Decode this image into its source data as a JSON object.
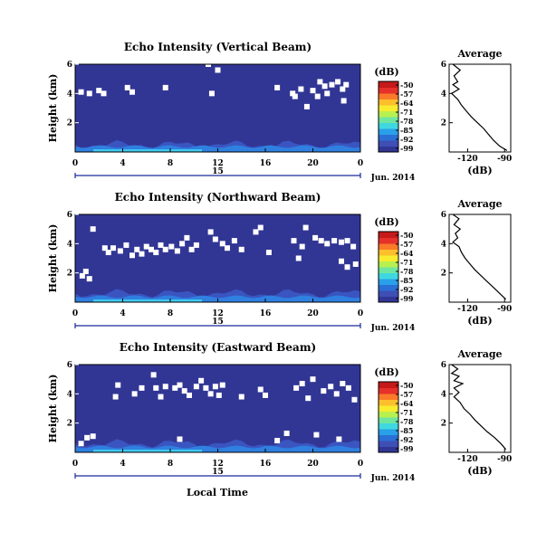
{
  "figure": {
    "xlabel": "Local Time",
    "date_label": "Jun. 2014",
    "day_label": "15"
  },
  "colorbar": {
    "unit": "(dB)",
    "ticks": [
      "-50",
      "-57",
      "-64",
      "-71",
      "-78",
      "-85",
      "-92",
      "-99"
    ],
    "colors": [
      "#313695",
      "#3f4fb4",
      "#2a6fd6",
      "#2aa0e8",
      "#3fd8e0",
      "#6fe6a0",
      "#b8f050",
      "#f8ec2e",
      "#fdbf2c",
      "#fa7a2a",
      "#e6302a",
      "#c41a1a"
    ]
  },
  "avg_panel": {
    "title": "Average",
    "xlabel": "(dB)",
    "xticks": [
      "-120",
      "-90"
    ],
    "yticks": [
      "6",
      "4",
      "2"
    ]
  },
  "chart_data": [
    {
      "type": "heatmap",
      "title": "Echo Intensity (Vertical Beam)",
      "ylabel": "Height (km)",
      "xlabel": "Local Time",
      "x_ticks": [
        "0",
        "4",
        "8",
        "12",
        "16",
        "20",
        "0"
      ],
      "y_ticks": [
        "6",
        "4",
        "2"
      ],
      "xlim": [
        0,
        24
      ],
      "ylim": [
        0,
        6
      ],
      "clim": [
        -99,
        -50
      ],
      "background_value": -99,
      "gap_points": [
        [
          2.0,
          4.2
        ],
        [
          2.4,
          4.0
        ],
        [
          1.2,
          4.0
        ],
        [
          0.5,
          4.1
        ],
        [
          4.4,
          4.4
        ],
        [
          4.8,
          4.1
        ],
        [
          7.6,
          4.4
        ],
        [
          11.5,
          4.0
        ],
        [
          11.2,
          6.0
        ],
        [
          12.0,
          5.6
        ],
        [
          17.0,
          4.4
        ],
        [
          18.3,
          4.0
        ],
        [
          18.5,
          3.8
        ],
        [
          19.0,
          4.3
        ],
        [
          19.5,
          3.1
        ],
        [
          20.0,
          4.2
        ],
        [
          20.4,
          3.8
        ],
        [
          20.6,
          4.8
        ],
        [
          21.0,
          4.5
        ],
        [
          21.2,
          4.0
        ],
        [
          21.6,
          4.6
        ],
        [
          22.1,
          4.8
        ],
        [
          22.5,
          4.3
        ],
        [
          22.6,
          3.5
        ],
        [
          22.8,
          4.6
        ]
      ],
      "surface_band_top_km": 0.5,
      "avg_profile": [
        [
          -132,
          6.0
        ],
        [
          -126,
          5.6
        ],
        [
          -131,
          5.2
        ],
        [
          -128,
          4.8
        ],
        [
          -132,
          4.6
        ],
        [
          -127,
          4.3
        ],
        [
          -133,
          4.0
        ],
        [
          -128,
          3.6
        ],
        [
          -125,
          3.2
        ],
        [
          -121,
          2.8
        ],
        [
          -117,
          2.4
        ],
        [
          -112,
          2.0
        ],
        [
          -107,
          1.6
        ],
        [
          -103,
          1.2
        ],
        [
          -99,
          0.8
        ],
        [
          -94,
          0.4
        ],
        [
          -88,
          0.1
        ]
      ]
    },
    {
      "type": "heatmap",
      "title": "Echo Intensity (Northward Beam)",
      "ylabel": "Height (km)",
      "xlabel": "Local Time",
      "x_ticks": [
        "0",
        "4",
        "8",
        "12",
        "16",
        "20",
        "0"
      ],
      "y_ticks": [
        "6",
        "4",
        "2"
      ],
      "xlim": [
        0,
        24
      ],
      "ylim": [
        0,
        6
      ],
      "clim": [
        -99,
        -50
      ],
      "background_value": -99,
      "gap_points": [
        [
          1.5,
          5.0
        ],
        [
          2.5,
          3.7
        ],
        [
          2.8,
          3.4
        ],
        [
          3.2,
          3.7
        ],
        [
          3.8,
          3.5
        ],
        [
          4.3,
          3.9
        ],
        [
          4.8,
          3.2
        ],
        [
          5.2,
          3.6
        ],
        [
          5.6,
          3.3
        ],
        [
          6.0,
          3.8
        ],
        [
          6.4,
          3.6
        ],
        [
          6.8,
          3.4
        ],
        [
          7.2,
          3.9
        ],
        [
          7.6,
          3.6
        ],
        [
          8.1,
          3.8
        ],
        [
          8.6,
          3.5
        ],
        [
          9.0,
          4.0
        ],
        [
          9.4,
          4.4
        ],
        [
          9.8,
          3.6
        ],
        [
          10.2,
          3.9
        ],
        [
          11.4,
          4.8
        ],
        [
          11.8,
          4.3
        ],
        [
          12.4,
          4.0
        ],
        [
          12.8,
          3.7
        ],
        [
          13.4,
          4.2
        ],
        [
          14.0,
          3.6
        ],
        [
          15.2,
          4.8
        ],
        [
          15.6,
          5.1
        ],
        [
          16.3,
          3.4
        ],
        [
          18.4,
          4.2
        ],
        [
          18.8,
          3.0
        ],
        [
          19.1,
          3.8
        ],
        [
          19.4,
          5.1
        ],
        [
          20.2,
          4.4
        ],
        [
          20.7,
          4.2
        ],
        [
          21.2,
          4.0
        ],
        [
          21.8,
          4.2
        ],
        [
          22.4,
          4.1
        ],
        [
          22.9,
          4.2
        ],
        [
          23.4,
          3.8
        ],
        [
          0.6,
          1.8
        ],
        [
          0.9,
          2.1
        ],
        [
          1.2,
          1.6
        ],
        [
          22.4,
          2.8
        ],
        [
          22.9,
          2.4
        ],
        [
          23.6,
          2.6
        ]
      ],
      "surface_band_top_km": 0.6,
      "avg_profile": [
        [
          -132,
          6.0
        ],
        [
          -127,
          5.7
        ],
        [
          -131,
          5.3
        ],
        [
          -126,
          5.0
        ],
        [
          -130,
          4.7
        ],
        [
          -128,
          4.4
        ],
        [
          -132,
          4.1
        ],
        [
          -127,
          3.8
        ],
        [
          -125,
          3.4
        ],
        [
          -122,
          3.0
        ],
        [
          -118,
          2.6
        ],
        [
          -114,
          2.2
        ],
        [
          -109,
          1.8
        ],
        [
          -104,
          1.4
        ],
        [
          -99,
          1.0
        ],
        [
          -94,
          0.6
        ],
        [
          -89,
          0.2
        ]
      ]
    },
    {
      "type": "heatmap",
      "title": "Echo Intensity (Eastward Beam)",
      "ylabel": "Height (km)",
      "xlabel": "Local Time",
      "x_ticks": [
        "0",
        "4",
        "8",
        "12",
        "16",
        "20",
        "0"
      ],
      "y_ticks": [
        "6",
        "4",
        "2"
      ],
      "xlim": [
        0,
        24
      ],
      "ylim": [
        0,
        6
      ],
      "clim": [
        -99,
        -50
      ],
      "background_value": -99,
      "gap_points": [
        [
          3.6,
          4.6
        ],
        [
          3.4,
          3.8
        ],
        [
          5.0,
          4.0
        ],
        [
          5.6,
          4.4
        ],
        [
          6.6,
          5.3
        ],
        [
          6.8,
          4.4
        ],
        [
          7.2,
          3.8
        ],
        [
          7.6,
          4.5
        ],
        [
          8.4,
          4.4
        ],
        [
          8.8,
          4.6
        ],
        [
          9.2,
          4.2
        ],
        [
          9.6,
          3.9
        ],
        [
          10.2,
          4.5
        ],
        [
          10.6,
          4.9
        ],
        [
          11.0,
          4.4
        ],
        [
          11.4,
          4.0
        ],
        [
          11.8,
          4.5
        ],
        [
          12.1,
          3.9
        ],
        [
          12.4,
          4.6
        ],
        [
          14.0,
          3.8
        ],
        [
          15.6,
          4.3
        ],
        [
          16.0,
          3.9
        ],
        [
          18.6,
          4.4
        ],
        [
          19.1,
          4.7
        ],
        [
          19.6,
          3.7
        ],
        [
          20.0,
          5.0
        ],
        [
          20.9,
          4.2
        ],
        [
          21.5,
          4.5
        ],
        [
          22.0,
          4.0
        ],
        [
          22.5,
          4.7
        ],
        [
          23.0,
          4.4
        ],
        [
          23.5,
          3.6
        ],
        [
          1.0,
          1.0
        ],
        [
          1.5,
          1.1
        ],
        [
          8.8,
          0.9
        ],
        [
          17.0,
          0.8
        ],
        [
          22.2,
          0.9
        ],
        [
          0.5,
          0.6
        ],
        [
          17.8,
          1.3
        ],
        [
          20.3,
          1.2
        ]
      ],
      "surface_band_top_km": 0.6,
      "avg_profile": [
        [
          -133,
          6.0
        ],
        [
          -128,
          5.7
        ],
        [
          -133,
          5.4
        ],
        [
          -127,
          5.2
        ],
        [
          -131,
          4.9
        ],
        [
          -124,
          4.7
        ],
        [
          -131,
          4.4
        ],
        [
          -127,
          4.1
        ],
        [
          -131,
          3.8
        ],
        [
          -126,
          3.4
        ],
        [
          -123,
          3.0
        ],
        [
          -118,
          2.6
        ],
        [
          -114,
          2.2
        ],
        [
          -109,
          1.8
        ],
        [
          -104,
          1.4
        ],
        [
          -98,
          1.0
        ],
        [
          -93,
          0.6
        ],
        [
          -89,
          0.2
        ]
      ]
    }
  ]
}
